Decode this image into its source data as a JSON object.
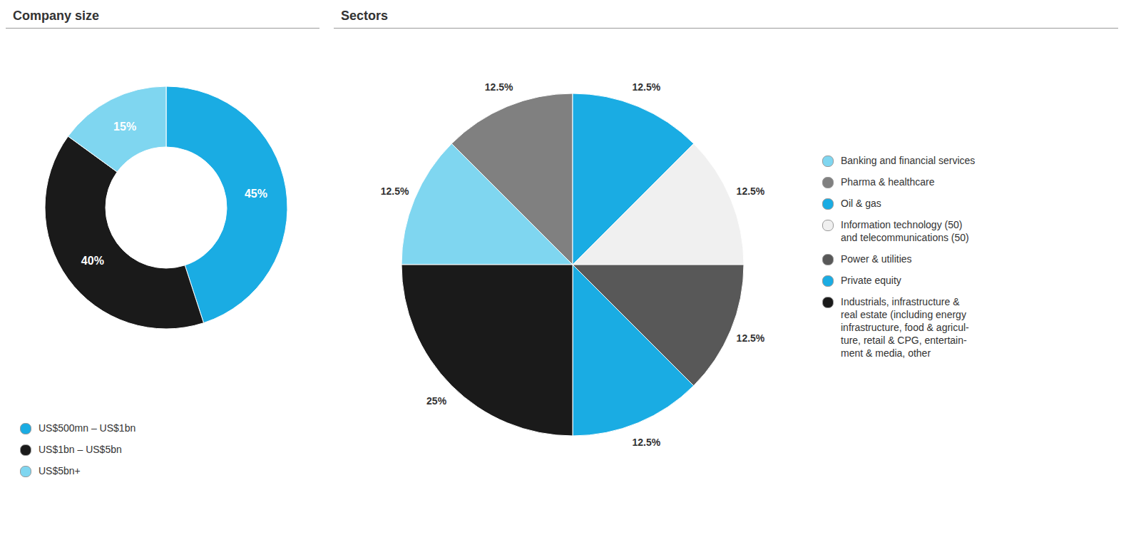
{
  "chart_data": [
    {
      "type": "donut",
      "title": "Company size",
      "categories": [
        "US$500mn – US$1bn",
        "US$1bn – US$5bn",
        "US$5bn+"
      ],
      "values": [
        45,
        40,
        15
      ],
      "value_labels": [
        "45%",
        "40%",
        "15%"
      ],
      "colors": [
        "#1aace3",
        "#1a1a1a",
        "#7fd6f0"
      ],
      "data_labels": true,
      "legend": "bottom"
    },
    {
      "type": "pie",
      "title": "Sectors",
      "categories": [
        "Banking and financial services",
        "Pharma & healthcare",
        "Oil & gas",
        "Information technology (50)\nand telecommunications (50)",
        "Power & utilities",
        "Private equity",
        "Industrials, infrastructure &\nreal estate (including energy\ninfrastructure, food & agricul-\nture, retail & CPG, entertain-\nment & media, other"
      ],
      "values": [
        12.5,
        12.5,
        12.5,
        12.5,
        12.5,
        12.5,
        25.0
      ],
      "value_labels": [
        "12.5%",
        "12.5%",
        "12.5%",
        "12.5%",
        "12.5%",
        "12.5%",
        "25%"
      ],
      "colors": [
        "#7fd6f0",
        "#808080",
        "#1aace3",
        "#f0f0f0",
        "#585858",
        "#1aace3",
        "#1a1a1a"
      ],
      "data_labels": true,
      "legend": "right"
    }
  ]
}
